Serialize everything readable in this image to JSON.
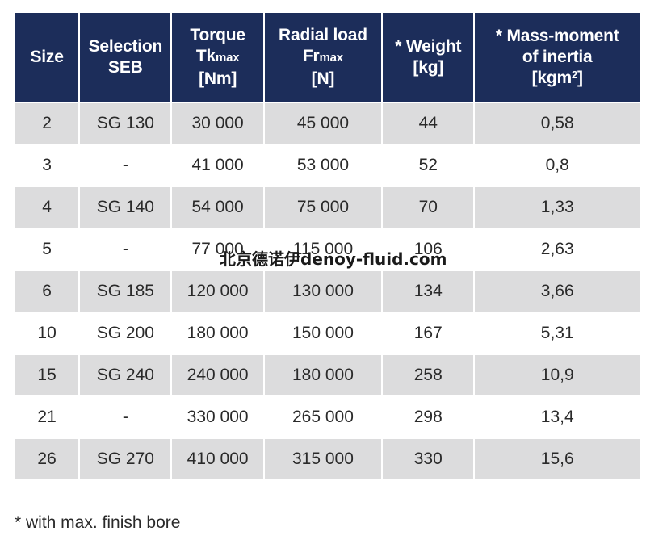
{
  "table": {
    "headers": {
      "size": "Size",
      "selection_l1": "Selection",
      "selection_l2": "SEB",
      "torque_l1": "Torque",
      "torque_l2a": "Tk",
      "torque_l2b": "max",
      "torque_l3": "[Nm]",
      "radial_l1": "Radial load",
      "radial_l2a": "Fr",
      "radial_l2b": "max",
      "radial_l3": "[N]",
      "weight_l1": "* Weight",
      "weight_l2": "[kg]",
      "mass_l1": "* Mass-moment",
      "mass_l2": "of inertia",
      "mass_l3a": "[kgm",
      "mass_l3b": "2",
      "mass_l3c": "]"
    },
    "rows": [
      [
        "2",
        "SG 130",
        "30 000",
        "45 000",
        "44",
        "0,58"
      ],
      [
        "3",
        "-",
        "41 000",
        "53 000",
        "52",
        "0,8"
      ],
      [
        "4",
        "SG 140",
        "54 000",
        "75 000",
        "70",
        "1,33"
      ],
      [
        "5",
        "-",
        "77 000",
        "115 000",
        "106",
        "2,63"
      ],
      [
        "6",
        "SG 185",
        "120 000",
        "130 000",
        "134",
        "3,66"
      ],
      [
        "10",
        "SG 200",
        "180 000",
        "150 000",
        "167",
        "5,31"
      ],
      [
        "15",
        "SG 240",
        "240 000",
        "180 000",
        "258",
        "10,9"
      ],
      [
        "21",
        "-",
        "330 000",
        "265 000",
        "298",
        "13,4"
      ],
      [
        "26",
        "SG 270",
        "410 000",
        "315 000",
        "330",
        "15,6"
      ]
    ]
  },
  "footnote": "* with max. finish bore",
  "watermark": "北京德诺伊denoy-fluid.com",
  "colors": {
    "header_bg": "#1c2d5a",
    "shaded_row": "#dcdcdd",
    "text": "#2a2a2a"
  }
}
